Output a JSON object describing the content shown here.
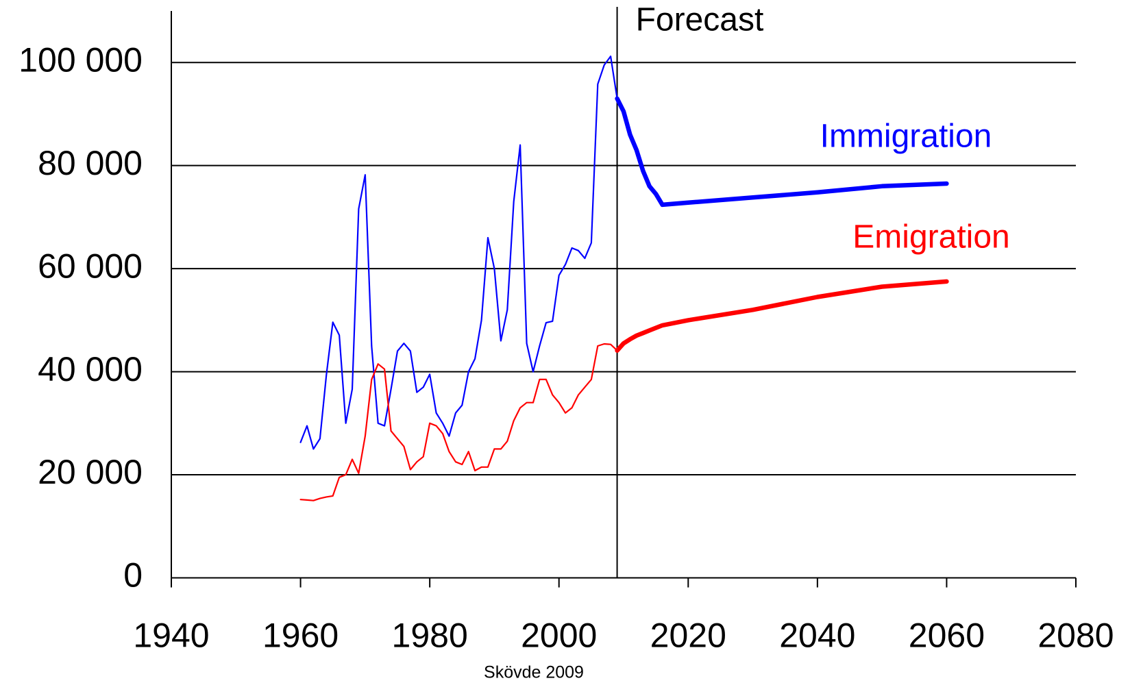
{
  "chart_data": {
    "type": "line",
    "x": [
      1960,
      1961,
      1962,
      1963,
      1964,
      1965,
      1966,
      1967,
      1968,
      1969,
      1970,
      1971,
      1972,
      1973,
      1974,
      1975,
      1976,
      1977,
      1978,
      1979,
      1980,
      1981,
      1982,
      1983,
      1984,
      1985,
      1986,
      1987,
      1988,
      1989,
      1990,
      1991,
      1992,
      1993,
      1994,
      1995,
      1996,
      1997,
      1998,
      1999,
      2000,
      2001,
      2002,
      2003,
      2004,
      2005,
      2006,
      2007,
      2008,
      2009,
      2010,
      2011,
      2012,
      2013,
      2014,
      2015,
      2016,
      2020,
      2030,
      2040,
      2050,
      2060
    ],
    "series": [
      {
        "name": "Immigration",
        "color": "#0000ff",
        "values": [
          26300,
          29500,
          25000,
          27000,
          39400,
          49600,
          47100,
          30000,
          36600,
          71600,
          78200,
          45000,
          30000,
          29500,
          36600,
          44000,
          45500,
          44000,
          36000,
          37000,
          39500,
          32000,
          30000,
          27500,
          32000,
          33500,
          40000,
          42500,
          50000,
          66000,
          60000,
          46000,
          52000,
          73000,
          84000,
          45500,
          40000,
          45000,
          49500,
          49800,
          58700,
          60800,
          64000,
          63500,
          62000,
          65000,
          95800,
          99500,
          101200,
          93000,
          90500,
          86000,
          83000,
          79000,
          76000,
          74500,
          72400,
          72800,
          73800,
          74800,
          76000,
          76500
        ]
      },
      {
        "name": "Emigration",
        "color": "#ff0000",
        "values": [
          15200,
          15100,
          15000,
          15400,
          15700,
          15900,
          19500,
          20000,
          23000,
          20300,
          27500,
          38500,
          41500,
          40500,
          28500,
          27000,
          25500,
          21000,
          22500,
          23500,
          30000,
          29500,
          28000,
          24500,
          22500,
          22000,
          24500,
          20800,
          21500,
          21500,
          25000,
          25000,
          26500,
          30500,
          33000,
          34000,
          34000,
          38500,
          38500,
          35500,
          34000,
          32000,
          33000,
          35500,
          37000,
          38500,
          45000,
          45400,
          45300,
          44100,
          45500,
          46300,
          47000,
          47500,
          48000,
          48500,
          49000,
          50000,
          52000,
          54500,
          56500,
          57500
        ]
      }
    ],
    "forecast": {
      "label": "Forecast",
      "x": 2009
    },
    "xlim": [
      1940,
      2080
    ],
    "xticks": [
      1940,
      1960,
      1980,
      2000,
      2020,
      2040,
      2060,
      2080
    ],
    "ylim": [
      0,
      110000
    ],
    "yticks": [
      0,
      {
        "value": 20000,
        "label": "20 000"
      },
      {
        "value": 40000,
        "label": "40 000"
      },
      {
        "value": 60000,
        "label": "60 000"
      },
      {
        "value": 80000,
        "label": "80 000"
      },
      {
        "value": 100000,
        "label": "100 000"
      }
    ],
    "grid": true,
    "source": "Skövde 2009"
  }
}
